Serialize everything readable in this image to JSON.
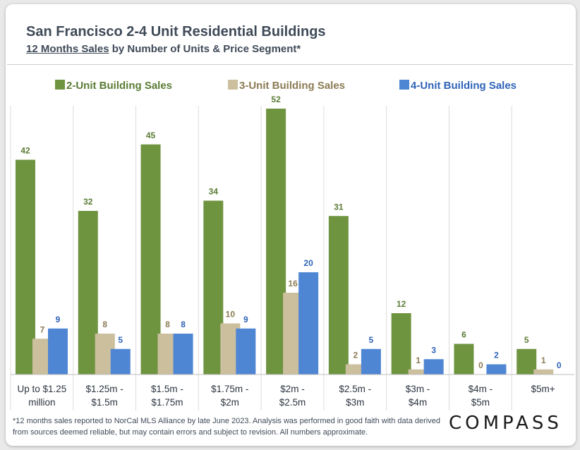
{
  "title": "San Francisco 2-4 Unit Residential Buildings",
  "subtitle_underlined": "12 Months Sales",
  "subtitle_rest": " by Number of Units & Price Segment*",
  "footnote": "*12 months sales reported to NorCal MLS Alliance by late June 2023. Analysis was performed in good faith with data derived from sources deemed reliable, but may contain errors and subject to revision. All numbers approximate.",
  "logo": "COMPASS",
  "colors": {
    "two_unit": "#6f9440",
    "three_unit": "#cbbf9e",
    "four_unit": "#4f86d4",
    "two_unit_text": "#5b7c35",
    "three_unit_text": "#8c7c55",
    "four_unit_text": "#2f64b8",
    "axis_text": "#2c3440"
  },
  "chart_data": {
    "type": "bar",
    "title": "San Francisco 2-4 Unit Residential Buildings",
    "xlabel": "",
    "ylabel": "",
    "ylim": [
      0,
      52
    ],
    "legend_position": "top",
    "categories": [
      [
        "Up to $1.25",
        "million"
      ],
      [
        "$1.25m -",
        "$1.5m"
      ],
      [
        "$1.5m -",
        "$1.75m"
      ],
      [
        "$1.75m -",
        "$2m"
      ],
      [
        "$2m -",
        "$2.5m"
      ],
      [
        "$2.5m -",
        "$3m"
      ],
      [
        "$3m -",
        "$4m"
      ],
      [
        "$4m -",
        "$5m"
      ],
      [
        "$5m+"
      ]
    ],
    "series": [
      {
        "name": "2-Unit Building Sales",
        "key": "two_unit",
        "values": [
          42,
          32,
          45,
          34,
          52,
          31,
          12,
          6,
          5
        ]
      },
      {
        "name": "3-Unit Building Sales",
        "key": "three_unit",
        "values": [
          7,
          8,
          8,
          10,
          16,
          2,
          1,
          0,
          1
        ]
      },
      {
        "name": "4-Unit Building Sales",
        "key": "four_unit",
        "values": [
          9,
          5,
          8,
          9,
          20,
          5,
          3,
          2,
          0
        ]
      }
    ]
  }
}
